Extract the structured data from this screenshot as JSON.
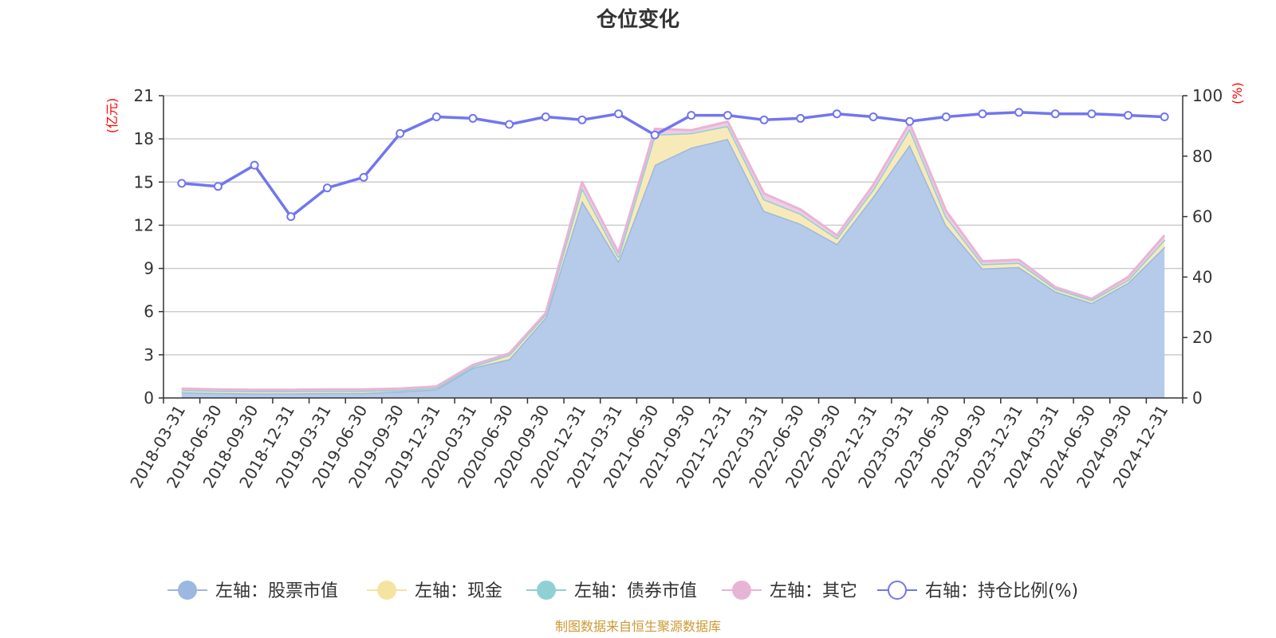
{
  "chart_data": {
    "type": "area",
    "title": "仓位变化",
    "left_unit": "(亿元)",
    "right_unit": "(%)",
    "source_note": "制图数据来自恒生聚源数据库",
    "left_axis": {
      "min": 0,
      "max": 21,
      "ticks": [
        "0",
        "3",
        "6",
        "9",
        "12",
        "15",
        "18",
        "21"
      ]
    },
    "right_axis": {
      "min": 0,
      "max": 100,
      "ticks": [
        "0",
        "20",
        "40",
        "60",
        "80",
        "100"
      ]
    },
    "categories": [
      "2018-03-31",
      "2018-06-30",
      "2018-09-30",
      "2018-12-31",
      "2019-03-31",
      "2019-06-30",
      "2019-09-30",
      "2019-12-31",
      "2020-03-31",
      "2020-06-30",
      "2020-09-30",
      "2020-12-31",
      "2021-03-31",
      "2021-06-30",
      "2021-09-30",
      "2021-12-31",
      "2022-03-31",
      "2022-06-30",
      "2022-09-30",
      "2022-12-31",
      "2023-03-31",
      "2023-06-30",
      "2023-09-30",
      "2023-12-31",
      "2024-03-31",
      "2024-06-30",
      "2024-09-30",
      "2024-12-31"
    ],
    "series": [
      {
        "name": "左轴：股票市值",
        "axis": "left",
        "kind": "stacked-area",
        "color": "#9bb8e0",
        "fill": "#b6cbe9",
        "values": [
          0.4,
          0.35,
          0.32,
          0.32,
          0.35,
          0.35,
          0.45,
          0.6,
          2.1,
          2.7,
          5.6,
          13.7,
          9.5,
          16.2,
          17.4,
          18.0,
          13.0,
          12.1,
          10.7,
          14.0,
          17.6,
          12.0,
          9.0,
          9.1,
          7.4,
          6.6,
          8.0,
          10.5
        ]
      },
      {
        "name": "左轴：现金",
        "axis": "left",
        "kind": "stacked-area",
        "color": "#f5e4a0",
        "fill": "#f8eab8",
        "values": [
          0.15,
          0.15,
          0.15,
          0.15,
          0.15,
          0.15,
          0.1,
          0.1,
          0.1,
          0.3,
          0.2,
          0.9,
          0.3,
          2.1,
          1.0,
          0.9,
          0.8,
          0.7,
          0.4,
          0.5,
          1.1,
          0.6,
          0.3,
          0.3,
          0.2,
          0.2,
          0.2,
          0.5
        ]
      },
      {
        "name": "左轴：债券市值",
        "axis": "left",
        "kind": "stacked-area",
        "color": "#8fd0d3",
        "fill": "#b8e3e5",
        "values": [
          0,
          0,
          0,
          0,
          0,
          0,
          0,
          0,
          0,
          0,
          0,
          0,
          0,
          0,
          0,
          0,
          0,
          0,
          0,
          0,
          0,
          0,
          0,
          0,
          0,
          0,
          0,
          0
        ]
      },
      {
        "name": "左轴：其它",
        "axis": "left",
        "kind": "stacked-area",
        "color": "#e8b4d6",
        "fill": "#f0cce3",
        "values": [
          0.1,
          0.1,
          0.1,
          0.1,
          0.1,
          0.1,
          0.1,
          0.1,
          0.1,
          0.1,
          0.1,
          0.4,
          0.3,
          0.4,
          0.2,
          0.3,
          0.4,
          0.3,
          0.2,
          0.3,
          0.4,
          0.4,
          0.2,
          0.2,
          0.1,
          0.1,
          0.2,
          0.3
        ]
      },
      {
        "name": "右轴：持仓比例(%)",
        "axis": "right",
        "kind": "line",
        "color": "#7176ee",
        "values": [
          71.0,
          70.0,
          77.0,
          60.0,
          69.5,
          73.0,
          87.5,
          93.0,
          92.5,
          90.5,
          93.0,
          92.0,
          94.0,
          87.0,
          93.5,
          93.5,
          92.0,
          92.5,
          94.0,
          93.0,
          91.5,
          93.0,
          94.0,
          94.5,
          94.0,
          94.0,
          93.5,
          93.0
        ]
      }
    ],
    "legend_position": "bottom",
    "grid": "horizontal"
  }
}
